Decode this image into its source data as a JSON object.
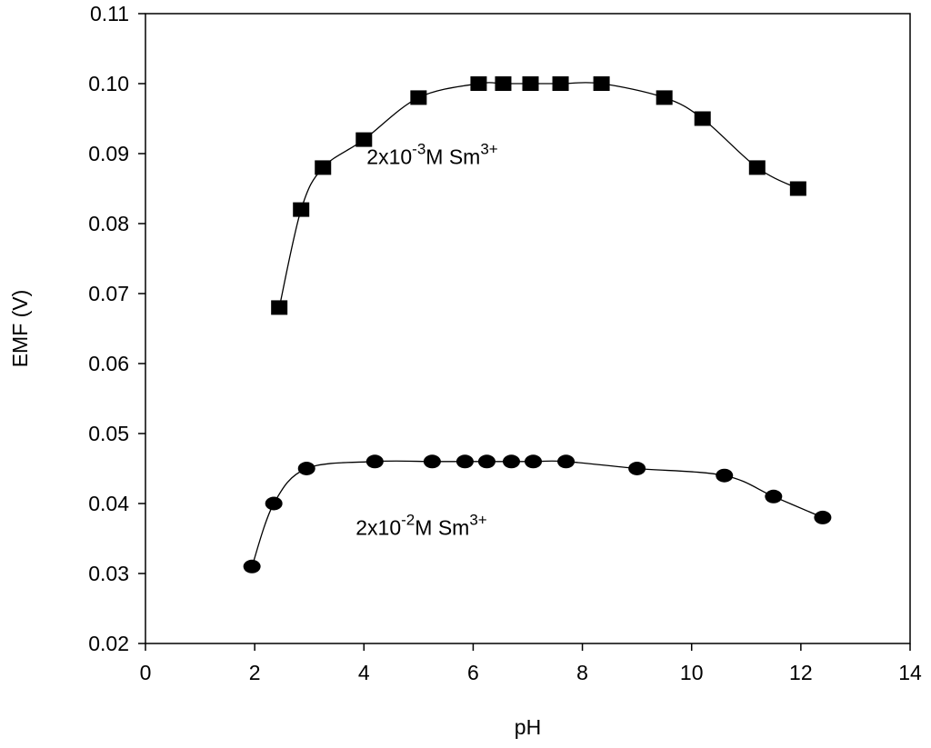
{
  "chart_data": {
    "type": "scatter",
    "title": "",
    "xlabel": "pH",
    "ylabel": "EMF (V)",
    "xlim": [
      0,
      14
    ],
    "ylim": [
      0.02,
      0.11
    ],
    "xticks": [
      0,
      2,
      4,
      6,
      8,
      10,
      12,
      14
    ],
    "yticks": [
      0.02,
      0.03,
      0.04,
      0.05,
      0.06,
      0.07,
      0.08,
      0.09,
      0.1,
      0.11
    ],
    "ytick_labels": [
      "0.02",
      "0.03",
      "0.04",
      "0.05",
      "0.06",
      "0.07",
      "0.08",
      "0.09",
      "0.10",
      "0.11"
    ],
    "grid": false,
    "marker_color": "#000000",
    "series": [
      {
        "marker": "square",
        "label_base": "2x10",
        "label_exp": "-3",
        "label_mid": "M Sm",
        "label_sup": "3+",
        "label_at": [
          4.05,
          0.0885
        ],
        "x": [
          2.45,
          2.85,
          3.25,
          4.0,
          5.0,
          6.1,
          6.55,
          7.05,
          7.6,
          8.35,
          9.5,
          10.2,
          11.2,
          11.95
        ],
        "y": [
          0.068,
          0.082,
          0.088,
          0.092,
          0.098,
          0.1,
          0.1,
          0.1,
          0.1,
          0.1,
          0.098,
          0.095,
          0.088,
          0.085
        ]
      },
      {
        "marker": "circle",
        "label_base": "2x10",
        "label_exp": "-2",
        "label_mid": "M Sm",
        "label_sup": "3+",
        "label_at": [
          3.85,
          0.0355
        ],
        "x": [
          1.95,
          2.35,
          2.95,
          4.2,
          5.25,
          5.85,
          6.25,
          6.7,
          7.1,
          7.7,
          9.0,
          10.6,
          11.5,
          12.4
        ],
        "y": [
          0.031,
          0.04,
          0.045,
          0.046,
          0.046,
          0.046,
          0.046,
          0.046,
          0.046,
          0.046,
          0.045,
          0.044,
          0.041,
          0.038
        ]
      }
    ]
  }
}
